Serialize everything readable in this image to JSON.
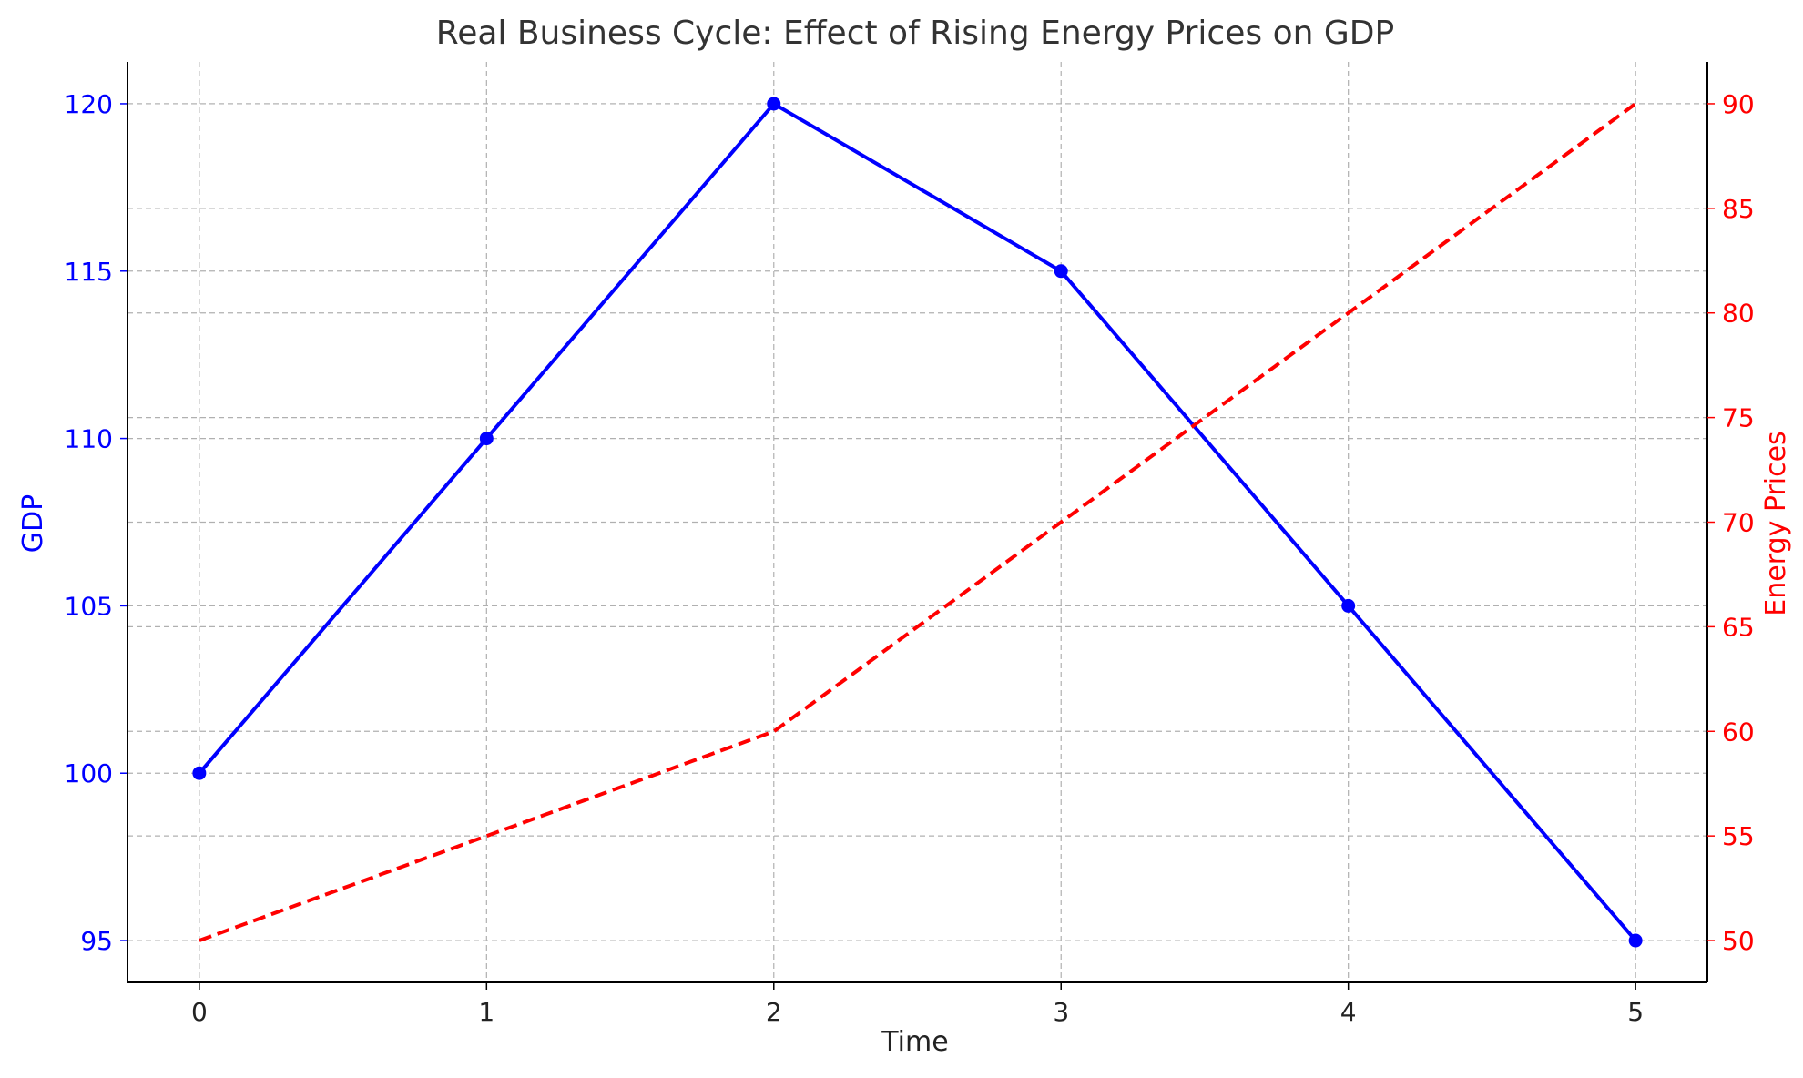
{
  "chart_data": {
    "type": "line",
    "title": "Real Business Cycle: Effect of Rising Energy Prices on GDP",
    "xlabel": "Time",
    "x": [
      0,
      1,
      2,
      3,
      4,
      5
    ],
    "xlim": [
      -0.25,
      5.25
    ],
    "xticks": [
      "0",
      "1",
      "2",
      "3",
      "4",
      "5"
    ],
    "grid": true,
    "axes": {
      "left": {
        "label": "GDP",
        "color": "#0000ff",
        "ylim": [
          93.75,
          121.25
        ],
        "ticks": [
          95,
          100,
          105,
          110,
          115,
          120
        ]
      },
      "right": {
        "label": "Energy Prices",
        "color": "#ff0000",
        "ylim": [
          48.0,
          92.0
        ],
        "ticks": [
          50,
          55,
          60,
          65,
          70,
          75,
          80,
          85,
          90
        ]
      }
    },
    "series": [
      {
        "name": "GDP",
        "axis": "left",
        "color": "#0000ff",
        "line_style": "solid",
        "markers": true,
        "values": [
          100,
          110,
          120,
          115,
          105,
          95
        ]
      },
      {
        "name": "Energy Prices",
        "axis": "right",
        "color": "#ff0000",
        "line_style": "dashed",
        "markers": false,
        "values": [
          50,
          55,
          60,
          70,
          80,
          90
        ]
      }
    ]
  }
}
